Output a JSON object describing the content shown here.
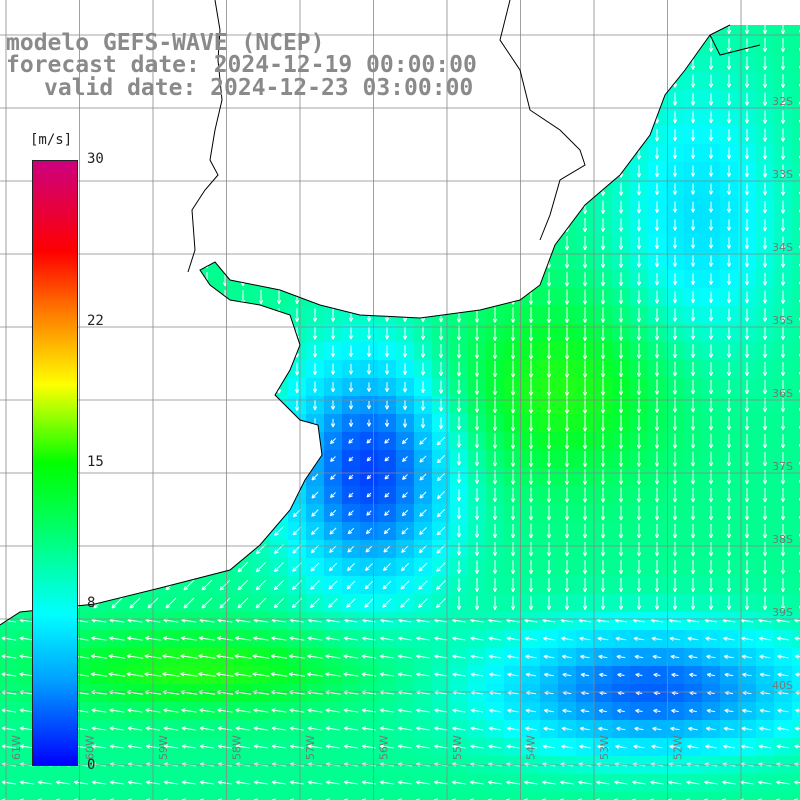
{
  "title": {
    "line1": "modelo GEFS-WAVE (NCEP)",
    "line2": "forecast date: 2024-12-19 00:00:00",
    "line3": "valid date: 2024-12-23 03:00:00"
  },
  "colorbar": {
    "unit": "[m/s]",
    "ticks": [
      "30",
      "22",
      "15",
      "8",
      "0"
    ],
    "tick_values": [
      30,
      22,
      15,
      8,
      0
    ],
    "min": 0,
    "max": 30,
    "colors": [
      "#0000ff",
      "#00a0ff",
      "#00ffff",
      "#00ff40",
      "#00ff00",
      "#ffff00",
      "#ff7a00",
      "#ff0000",
      "#cc007f"
    ]
  },
  "lat_labels": [
    "32S",
    "33S",
    "34S",
    "35S",
    "36S",
    "37S",
    "38S",
    "39S",
    "40S"
  ],
  "lon_labels": [
    "61W",
    "60W",
    "59W",
    "58W",
    "57W",
    "56W",
    "55W",
    "54W",
    "53W",
    "52W"
  ],
  "colors": {
    "land": "#ffffff",
    "grid": "#888888",
    "coast": "#000000",
    "arrow": "#ffffff",
    "title_text": "#8a8a8a"
  }
}
